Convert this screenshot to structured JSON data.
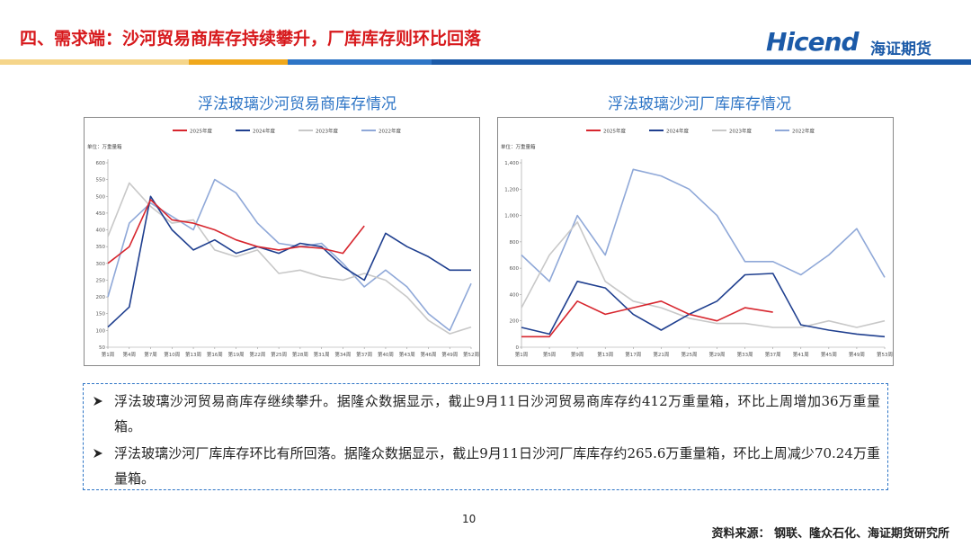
{
  "header": {
    "title": "四、需求端：沙河贸易商库存持续攀升，厂库库存则环比回落",
    "logo": "Hicend",
    "logo_cn": "海证期货"
  },
  "chart_data": [
    {
      "type": "line",
      "title": "浮法玻璃沙河贸易商库存情况",
      "unit": "单位：万重量箱",
      "categories": [
        "第1周",
        "第4周",
        "第7周",
        "第10周",
        "第13周",
        "第16周",
        "第19周",
        "第22周",
        "第25周",
        "第28周",
        "第31周",
        "第34周",
        "第37周",
        "第40周",
        "第43周",
        "第46周",
        "第49周",
        "第52周"
      ],
      "series": [
        {
          "name": "2025年度",
          "color": "#d7262e",
          "values": [
            300,
            350,
            490,
            430,
            420,
            400,
            370,
            350,
            340,
            350,
            345,
            330,
            412,
            null,
            null,
            null,
            null,
            null
          ]
        },
        {
          "name": "2024年度",
          "color": "#1f3f8f",
          "values": [
            110,
            170,
            500,
            400,
            340,
            370,
            330,
            350,
            330,
            360,
            350,
            290,
            250,
            390,
            350,
            320,
            280,
            280
          ]
        },
        {
          "name": "2023年度",
          "color": "#c8c8c8",
          "values": [
            380,
            540,
            470,
            420,
            430,
            340,
            320,
            340,
            270,
            280,
            260,
            250,
            270,
            250,
            200,
            130,
            90,
            110
          ]
        },
        {
          "name": "2022年度",
          "color": "#8fa8d8",
          "values": [
            200,
            420,
            480,
            440,
            400,
            550,
            510,
            420,
            360,
            350,
            360,
            300,
            230,
            280,
            230,
            150,
            100,
            240
          ]
        }
      ],
      "ylim": [
        50,
        600
      ],
      "yticks": [
        50,
        100,
        150,
        200,
        250,
        300,
        350,
        400,
        450,
        500,
        550,
        600
      ],
      "legend": "top"
    },
    {
      "type": "line",
      "title": "浮法玻璃沙河厂库库存情况",
      "unit": "单位：万重量箱",
      "categories": [
        "第1周",
        "第5周",
        "第9周",
        "第13周",
        "第17周",
        "第21周",
        "第25周",
        "第29周",
        "第33周",
        "第37周",
        "第41周",
        "第45周",
        "第49周",
        "第53周"
      ],
      "series": [
        {
          "name": "2025年度",
          "color": "#d7262e",
          "values": [
            80,
            80,
            350,
            250,
            300,
            350,
            250,
            200,
            300,
            266,
            null,
            null,
            null,
            null
          ]
        },
        {
          "name": "2024年度",
          "color": "#1f3f8f",
          "values": [
            150,
            100,
            500,
            450,
            250,
            130,
            250,
            350,
            550,
            560,
            170,
            130,
            100,
            80
          ]
        },
        {
          "name": "2023年度",
          "color": "#c8c8c8",
          "values": [
            300,
            700,
            950,
            500,
            350,
            300,
            220,
            180,
            180,
            150,
            150,
            200,
            150,
            200
          ]
        },
        {
          "name": "2022年度",
          "color": "#8fa8d8",
          "values": [
            700,
            500,
            1000,
            700,
            1350,
            1300,
            1200,
            1000,
            650,
            650,
            550,
            700,
            900,
            530
          ]
        }
      ],
      "ylim": [
        0,
        1400
      ],
      "yticks": [
        0,
        200,
        400,
        600,
        800,
        {
          "value": 1000,
          "label": "1,000"
        },
        {
          "value": 1200,
          "label": "1,200"
        },
        {
          "value": 1400,
          "label": "1,400"
        }
      ],
      "legend": "top"
    }
  ],
  "notes": [
    "浮法玻璃沙河贸易商库存继续攀升。据隆众数据显示，截止9月11日沙河贸易商库存约412万重量箱，环比上周增加36万重量箱。",
    "浮法玻璃沙河厂库库存环比有所回落。据隆众数据显示，截止9月11日沙河厂库库存约265.6万重量箱，环比上周减少70.24万重量箱。"
  ],
  "footer": {
    "page": "10",
    "source": "资料来源： 钢联、隆众石化、海证期货研究所"
  }
}
